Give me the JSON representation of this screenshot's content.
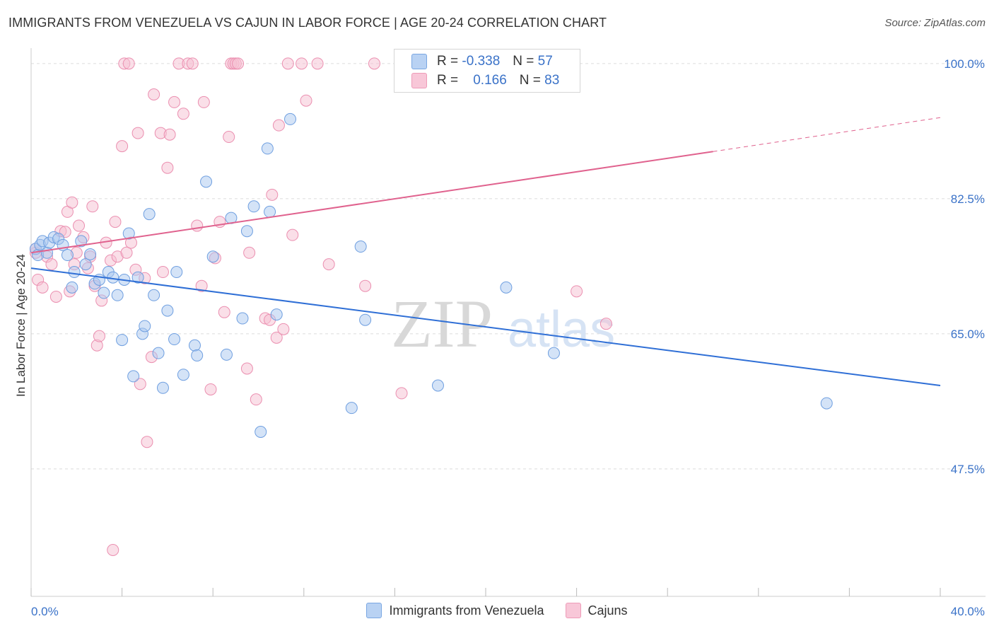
{
  "header": {
    "title": "IMMIGRANTS FROM VENEZUELA VS CAJUN IN LABOR FORCE | AGE 20-24 CORRELATION CHART",
    "source": "Source: ZipAtlas.com"
  },
  "stats_legend": {
    "rows": [
      {
        "r_label": "R =",
        "r_value": "-0.338",
        "n_label": "N =",
        "n_value": "57"
      },
      {
        "r_label": "R =",
        "r_value": "0.166",
        "n_label": "N =",
        "n_value": "83"
      }
    ]
  },
  "watermark": {
    "zip": "ZIP",
    "atlas": "atlas"
  },
  "colors": {
    "venezuela_fill": "#aac8f0",
    "venezuela_stroke": "#6f9fe0",
    "venezuela_line": "#2f6fd6",
    "cajun_fill": "#f6bfd2",
    "cajun_stroke": "#eb8fb0",
    "cajun_line": "#e0628e",
    "tick_label": "#3a72c8",
    "grid": "#dcdcdc"
  },
  "chart_data": {
    "type": "scatter",
    "xlabel": "",
    "ylabel": "In Labor Force | Age 20-24",
    "x_tick_labels": [
      "0.0%",
      "40.0%"
    ],
    "y_tick_labels": [
      "100.0%",
      "82.5%",
      "65.0%",
      "47.5%"
    ],
    "y_ticks": [
      100,
      82.5,
      65,
      47.5
    ],
    "xlim": [
      0,
      40
    ],
    "ylim": [
      31,
      102
    ],
    "grid": true,
    "legend_position": "bottom",
    "series": [
      {
        "name": "Immigrants from Venezuela",
        "trend": {
          "x0": 0,
          "y0": 73.5,
          "x1": 40,
          "y1": 58.3
        },
        "points": [
          [
            0.2,
            76.0
          ],
          [
            0.3,
            75.2
          ],
          [
            0.4,
            76.5
          ],
          [
            0.5,
            77.0
          ],
          [
            0.7,
            75.5
          ],
          [
            0.8,
            76.8
          ],
          [
            1.0,
            77.5
          ],
          [
            1.2,
            77.3
          ],
          [
            1.4,
            76.5
          ],
          [
            1.6,
            75.2
          ],
          [
            1.8,
            71.0
          ],
          [
            1.9,
            73.0
          ],
          [
            2.2,
            77.0
          ],
          [
            2.4,
            74.0
          ],
          [
            2.6,
            75.3
          ],
          [
            2.8,
            71.5
          ],
          [
            3.0,
            72.0
          ],
          [
            3.2,
            70.3
          ],
          [
            3.4,
            73.0
          ],
          [
            3.6,
            72.3
          ],
          [
            3.8,
            70.0
          ],
          [
            4.0,
            64.2
          ],
          [
            4.1,
            72.0
          ],
          [
            4.3,
            78.0
          ],
          [
            4.5,
            59.5
          ],
          [
            4.7,
            72.3
          ],
          [
            4.9,
            65.0
          ],
          [
            5.0,
            66.0
          ],
          [
            5.2,
            80.5
          ],
          [
            5.4,
            70.0
          ],
          [
            5.6,
            62.5
          ],
          [
            5.8,
            58.0
          ],
          [
            6.0,
            68.0
          ],
          [
            6.3,
            64.3
          ],
          [
            6.4,
            73.0
          ],
          [
            6.7,
            59.7
          ],
          [
            7.2,
            63.5
          ],
          [
            7.3,
            62.2
          ],
          [
            7.7,
            84.7
          ],
          [
            8.0,
            75.0
          ],
          [
            8.6,
            62.3
          ],
          [
            8.8,
            80.0
          ],
          [
            9.3,
            67.0
          ],
          [
            9.5,
            78.3
          ],
          [
            9.8,
            81.5
          ],
          [
            10.1,
            52.3
          ],
          [
            10.4,
            89.0
          ],
          [
            10.5,
            80.8
          ],
          [
            10.8,
            67.5
          ],
          [
            11.4,
            92.8
          ],
          [
            14.1,
            55.4
          ],
          [
            14.5,
            76.3
          ],
          [
            14.7,
            66.8
          ],
          [
            17.9,
            58.3
          ],
          [
            20.9,
            71.0
          ],
          [
            23.0,
            62.5
          ],
          [
            35.0,
            56.0
          ]
        ]
      },
      {
        "name": "Cajuns",
        "trend": {
          "x0": 0,
          "y0": 75.5,
          "x1": 30,
          "y1": 88.6,
          "dash_to_x": 40,
          "dash_to_y": 93.0
        },
        "points": [
          [
            0.2,
            75.5
          ],
          [
            0.3,
            72.0
          ],
          [
            0.5,
            71.0
          ],
          [
            0.7,
            75.0
          ],
          [
            0.9,
            74.0
          ],
          [
            1.1,
            69.8
          ],
          [
            1.3,
            78.3
          ],
          [
            1.5,
            78.2
          ],
          [
            1.6,
            80.8
          ],
          [
            1.7,
            70.5
          ],
          [
            1.8,
            82.0
          ],
          [
            1.9,
            74.0
          ],
          [
            2.0,
            75.5
          ],
          [
            2.1,
            79.0
          ],
          [
            2.3,
            77.5
          ],
          [
            2.5,
            73.5
          ],
          [
            2.6,
            75.0
          ],
          [
            2.7,
            81.5
          ],
          [
            2.8,
            71.2
          ],
          [
            2.9,
            63.5
          ],
          [
            3.0,
            64.7
          ],
          [
            3.1,
            69.3
          ],
          [
            3.3,
            76.8
          ],
          [
            3.5,
            74.5
          ],
          [
            3.6,
            37.0
          ],
          [
            3.7,
            79.5
          ],
          [
            3.8,
            75.0
          ],
          [
            4.0,
            89.3
          ],
          [
            4.1,
            100.0
          ],
          [
            4.2,
            75.5
          ],
          [
            4.3,
            100.0
          ],
          [
            4.4,
            76.8
          ],
          [
            4.6,
            73.3
          ],
          [
            4.7,
            91.0
          ],
          [
            4.8,
            58.5
          ],
          [
            5.0,
            72.2
          ],
          [
            5.1,
            51.0
          ],
          [
            5.3,
            62.0
          ],
          [
            5.4,
            96.0
          ],
          [
            5.7,
            91.0
          ],
          [
            5.8,
            73.0
          ],
          [
            6.0,
            86.5
          ],
          [
            6.1,
            90.8
          ],
          [
            6.3,
            95.0
          ],
          [
            6.5,
            100.0
          ],
          [
            6.7,
            93.5
          ],
          [
            6.9,
            100.0
          ],
          [
            7.1,
            100.0
          ],
          [
            7.3,
            79.0
          ],
          [
            7.5,
            71.2
          ],
          [
            7.6,
            95.0
          ],
          [
            7.9,
            57.8
          ],
          [
            8.1,
            74.8
          ],
          [
            8.3,
            79.5
          ],
          [
            8.5,
            67.8
          ],
          [
            8.7,
            90.5
          ],
          [
            8.8,
            100.0
          ],
          [
            8.9,
            100.0
          ],
          [
            9.0,
            100.0
          ],
          [
            9.1,
            100.0
          ],
          [
            9.5,
            60.5
          ],
          [
            9.6,
            75.5
          ],
          [
            9.9,
            56.5
          ],
          [
            10.3,
            67.0
          ],
          [
            10.5,
            66.8
          ],
          [
            10.6,
            83.0
          ],
          [
            10.8,
            64.5
          ],
          [
            10.9,
            92.0
          ],
          [
            11.1,
            65.6
          ],
          [
            11.3,
            100.0
          ],
          [
            11.5,
            77.8
          ],
          [
            11.9,
            100.0
          ],
          [
            12.1,
            95.2
          ],
          [
            12.6,
            100.0
          ],
          [
            13.1,
            74.0
          ],
          [
            14.7,
            71.2
          ],
          [
            15.1,
            100.0
          ],
          [
            16.3,
            57.3
          ],
          [
            18.6,
            100.0
          ],
          [
            20.0,
            100.0
          ],
          [
            24.0,
            70.5
          ],
          [
            25.3,
            66.3
          ],
          [
            0.2,
            76.0
          ]
        ]
      }
    ]
  },
  "legend": {
    "items": [
      "Immigrants from Venezuela",
      "Cajuns"
    ]
  }
}
